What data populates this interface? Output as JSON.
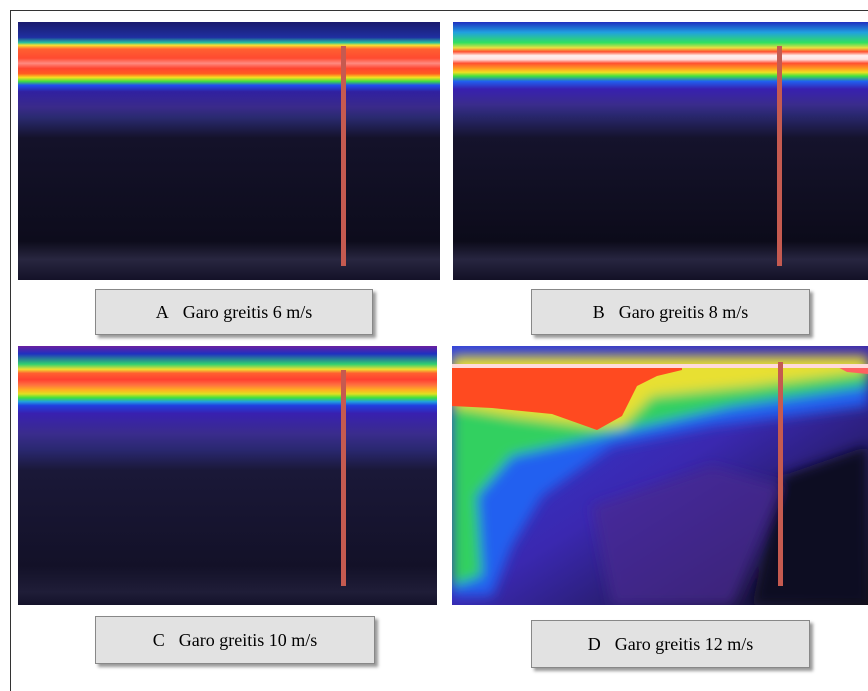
{
  "panels": [
    {
      "letter": "A",
      "caption": "Garo greitis 6 m/s"
    },
    {
      "letter": "B",
      "caption": "Garo greitis 8 m/s"
    },
    {
      "letter": "C",
      "caption": "Garo greitis 10 m/s"
    },
    {
      "letter": "D",
      "caption": "Garo greitis 12 m/s"
    }
  ]
}
